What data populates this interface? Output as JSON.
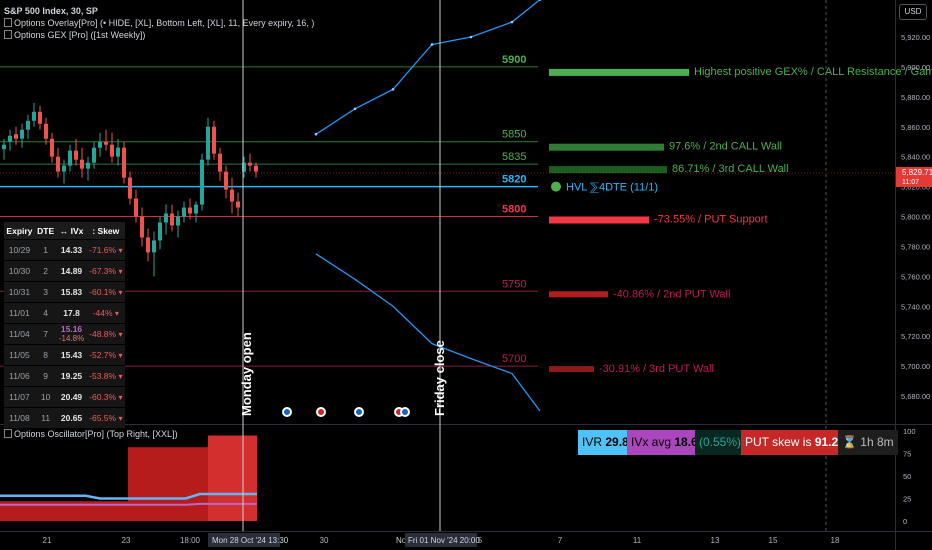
{
  "header": {
    "symbol": "S&P 500 Index, 30, SP",
    "overlay": "Options Overlay[Pro] (• HIDE, [XL], Bottom Left, [XL], 11, Every expiry, 16, )",
    "gex": "Options GEX [Pro] ([1st Weekly])",
    "oscillator": "Options Oscillator[Pro] (Top Right, [XXL])"
  },
  "currency": "USD",
  "price_axis": {
    "ticks": [
      "5,920.00",
      "5,900.00",
      "5,880.00",
      "5,860.00",
      "5,840.00",
      "5,820.00",
      "5,800.00",
      "5,780.00",
      "5,760.00",
      "5,740.00",
      "5,720.00",
      "5,700.00",
      "5,680.00"
    ],
    "last_price": "5,829.71",
    "last_sub": "11:07"
  },
  "osc_axis": {
    "ticks": [
      "100",
      "75",
      "50",
      "25",
      "0"
    ]
  },
  "time_axis": {
    "ticks": [
      "21",
      "23",
      "18:00",
      "30",
      "5",
      "7",
      "11",
      "13",
      "15",
      "18"
    ],
    "cursor_labels": [
      "Mon 28 Oct '24  13:30",
      "Fri 01 Nov '24  20:00"
    ],
    "hidden_prefix": "No"
  },
  "vlines": {
    "monday": "Monday open",
    "friday": "Friday close"
  },
  "levels": [
    {
      "label": "5900",
      "color": "#4caf50",
      "bold": true,
      "text": "Highest positive GEX% / CALL Resistance / Gam",
      "bar": "#4caf50"
    },
    {
      "label": "5850",
      "color": "#4caf50",
      "bold": false,
      "text": "97.6% / 2nd CALL Wall",
      "bar": "#2e7d32"
    },
    {
      "label": "5835",
      "color": "#4caf50",
      "bold": false,
      "text": "86.71% / 3rd CALL Wall",
      "bar": "#1b5e20"
    },
    {
      "label": "5820",
      "color": "#29b6f6",
      "bold": true,
      "text": "HVL ⅀4DTE (11/1)",
      "bar": "#4caf50"
    },
    {
      "label": "5800",
      "color": "#f23645",
      "bold": true,
      "text": "-73.55% / PUT Support",
      "bar": "#f23645"
    },
    {
      "label": "5750",
      "color": "#c2185b",
      "bold": false,
      "text": "-40.86% / 2nd PUT Wall",
      "bar": "#b71c1c"
    },
    {
      "label": "5700",
      "color": "#c2185b",
      "bold": false,
      "text": "-30.91% / 3rd PUT Wall",
      "bar": "#8b1a1a"
    }
  ],
  "table": {
    "headers": [
      "Expiry",
      "DTE",
      "↔ IVx",
      ": Skew"
    ],
    "rows": [
      {
        "expiry": "10/29",
        "dte": "1",
        "ivx": "14.33",
        "skew": "-71.6%"
      },
      {
        "expiry": "10/30",
        "dte": "2",
        "ivx": "14.89",
        "skew": "-67.3%"
      },
      {
        "expiry": "10/31",
        "dte": "3",
        "ivx": "15.83",
        "skew": "-60.1%"
      },
      {
        "expiry": "11/01",
        "dte": "4",
        "ivx": "17.8",
        "skew": "-44%"
      },
      {
        "expiry": "11/04",
        "dte": "7",
        "ivx": "15.16",
        "ivx_sub": "-14.8%",
        "skew": "-48.8%"
      },
      {
        "expiry": "11/05",
        "dte": "8",
        "ivx": "15.43",
        "skew": "-52.7%"
      },
      {
        "expiry": "11/06",
        "dte": "9",
        "ivx": "19.25",
        "skew": "-53.8%"
      },
      {
        "expiry": "11/07",
        "dte": "10",
        "ivx": "20.49",
        "skew": "-60.3%"
      },
      {
        "expiry": "11/08",
        "dte": "11",
        "ivx": "20.65",
        "skew": "-65.5%"
      }
    ]
  },
  "stats": {
    "ivr_label": "IVR",
    "ivr_value": "29.8",
    "ivx_label": "IVx avg",
    "ivx_value": "18.6",
    "change": "(0.55%)",
    "skew_label": "PUT skew is",
    "skew_value": "91.2%",
    "timer": "1h 8m"
  },
  "colors": {
    "bg": "#000000",
    "green": "#4caf50",
    "red": "#f23645",
    "blue": "#29b6f6",
    "ivr_bg": "#4fc3f7",
    "ivx_bg": "#ab47bc",
    "skew_bg": "#c62828",
    "teal": "#26a69a"
  },
  "chart_data": {
    "type": "candlestick",
    "title": "S&P 500 Index, 30, SP",
    "y_range": [
      5670,
      5930
    ],
    "levels": [
      5900,
      5850,
      5835,
      5820,
      5800,
      5750,
      5700
    ],
    "upper_projection": [
      [
        0,
        5855
      ],
      [
        1,
        5872
      ],
      [
        2,
        5885
      ],
      [
        3,
        5915
      ],
      [
        4,
        5920
      ],
      [
        5,
        5930
      ],
      [
        6,
        5945
      ]
    ],
    "lower_projection": [
      [
        0,
        5775
      ],
      [
        1,
        5758
      ],
      [
        2,
        5740
      ],
      [
        3,
        5715
      ],
      [
        4,
        5705
      ],
      [
        5,
        5695
      ],
      [
        6,
        5670
      ]
    ],
    "oscillator": {
      "range": [
        0,
        100
      ],
      "ivx_line": [
        28,
        28,
        28,
        28,
        28,
        28,
        28,
        25,
        25,
        25,
        25,
        25,
        25,
        25,
        30,
        30,
        30,
        30,
        30
      ],
      "ivr_line": [
        18,
        18,
        18,
        18,
        18,
        18,
        18,
        18,
        18,
        18,
        18,
        18,
        18,
        18,
        19,
        19,
        19,
        19,
        19
      ]
    }
  }
}
